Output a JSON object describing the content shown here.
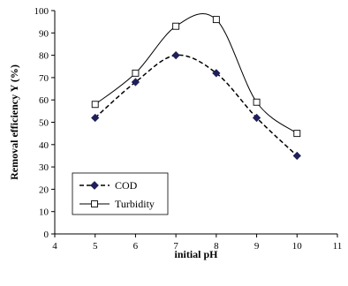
{
  "chart_data": {
    "type": "line",
    "xlabel": "initial pH",
    "ylabel": "Removal efficiency Y (%)",
    "xlim": [
      4,
      11
    ],
    "ylim": [
      0,
      100
    ],
    "xticks": [
      4,
      5,
      6,
      7,
      8,
      9,
      10,
      11
    ],
    "yticks": [
      0,
      10,
      20,
      30,
      40,
      50,
      60,
      70,
      80,
      90,
      100
    ],
    "grid": false,
    "legend_position": "bottom-left",
    "series": [
      {
        "name": "COD",
        "x": [
          5,
          6,
          7,
          8,
          9,
          10
        ],
        "values": [
          52,
          68,
          80,
          72,
          52,
          35
        ],
        "line_style": "dashed",
        "marker": "filled-diamond",
        "color": "#000000",
        "marker_fill": "#1f1f5a"
      },
      {
        "name": "Turbidity",
        "x": [
          5,
          6,
          7,
          8,
          9,
          10
        ],
        "values": [
          58,
          72,
          93,
          96,
          59,
          45
        ],
        "line_style": "solid",
        "marker": "open-square",
        "color": "#000000",
        "marker_fill": "#ffffff"
      }
    ]
  }
}
